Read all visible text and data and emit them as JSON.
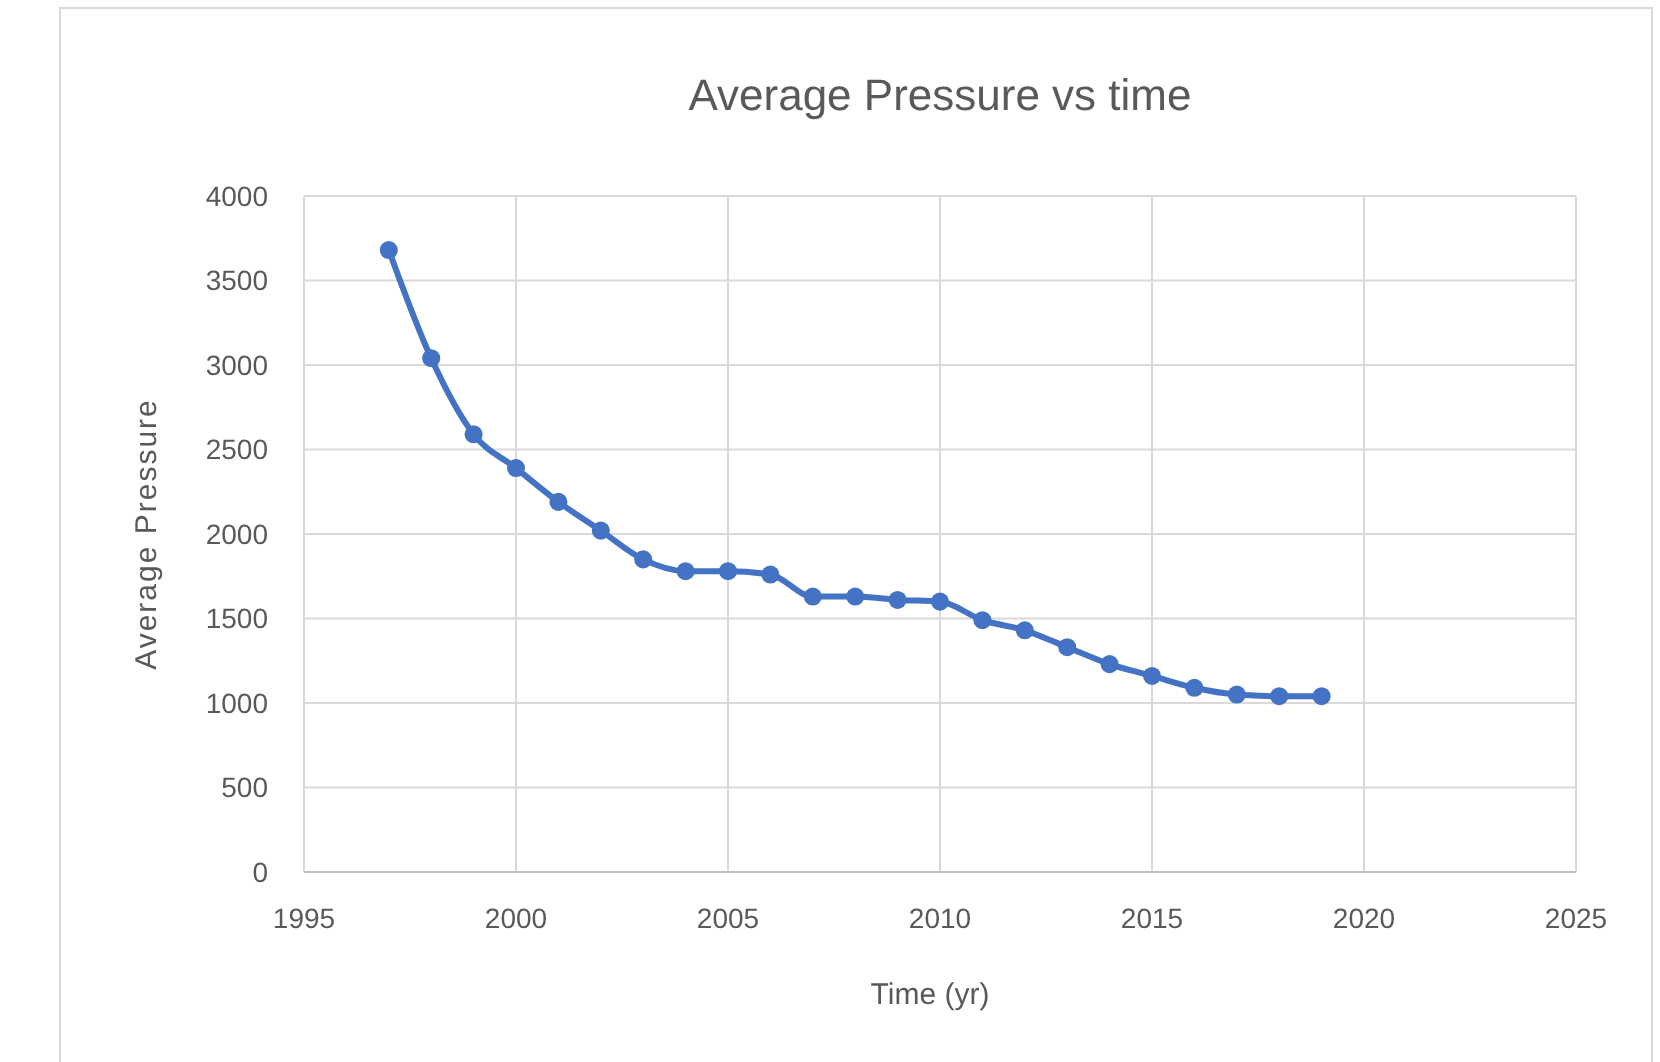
{
  "chart_data": {
    "type": "line",
    "title": "Average Pressure vs time",
    "xlabel": "Time (yr)",
    "ylabel": "Average Pressure",
    "x": [
      1997,
      1998,
      1999,
      2000,
      2001,
      2002,
      2003,
      2004,
      2005,
      2006,
      2007,
      2008,
      2009,
      2010,
      2011,
      2012,
      2013,
      2014,
      2015,
      2016,
      2017,
      2018,
      2019
    ],
    "series": [
      {
        "color": "#4472c4",
        "values": [
          3680,
          3040,
          2590,
          2390,
          2190,
          2020,
          1850,
          1780,
          1780,
          1760,
          1630,
          1630,
          1610,
          1600,
          1490,
          1430,
          1330,
          1230,
          1160,
          1090,
          1050,
          1040,
          1040
        ]
      }
    ],
    "xlim": [
      1995,
      2025
    ],
    "xticks": [
      1995,
      2000,
      2005,
      2010,
      2015,
      2020,
      2025
    ],
    "ylim": [
      0,
      4000
    ],
    "yticks": [
      0,
      500,
      1000,
      1500,
      2000,
      2500,
      3000,
      3500,
      4000
    ],
    "grid": true,
    "marker": "circle",
    "line_style": "solid"
  }
}
